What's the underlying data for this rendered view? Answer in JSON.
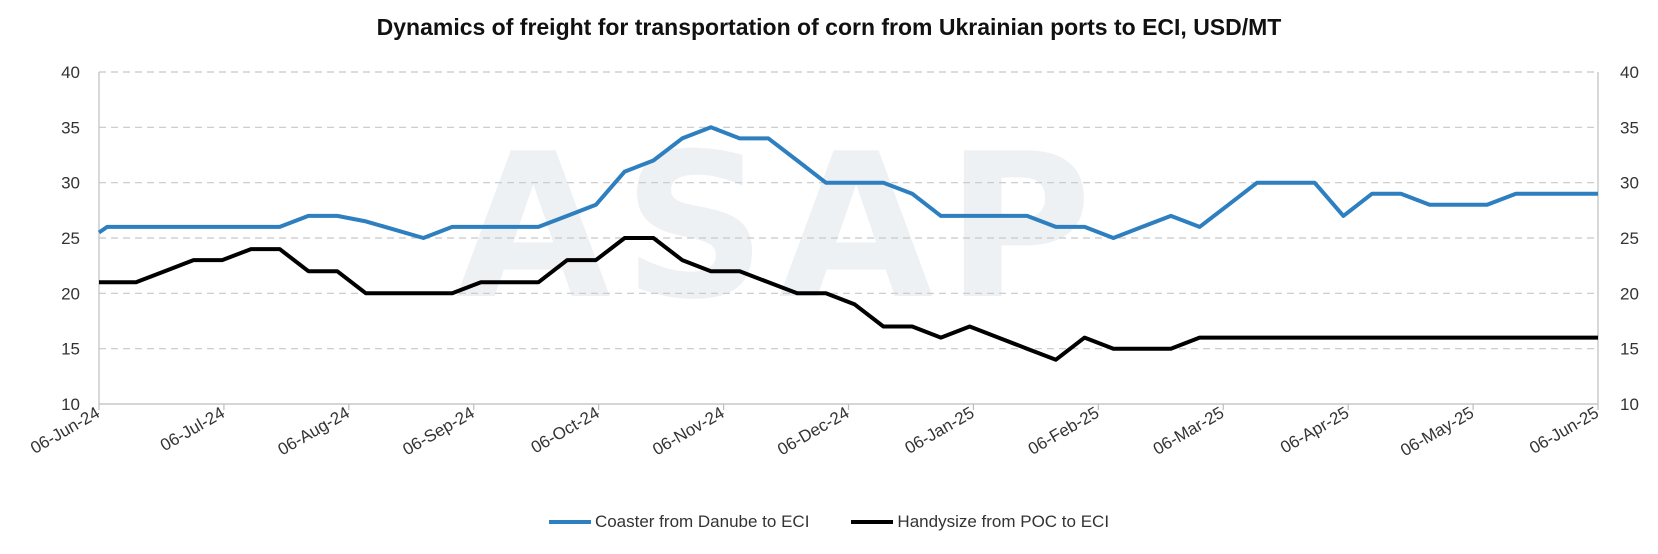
{
  "chart_data": {
    "type": "line",
    "title": "Dynamics of freight for transportation of corn from Ukrainian ports to ECI, USD/MT",
    "watermark": "ASAP",
    "xlabel": "",
    "ylabel": "",
    "ylim": [
      10,
      40
    ],
    "yticks": [
      "10",
      "15",
      "20",
      "25",
      "30",
      "35",
      "40"
    ],
    "secondary_yticks": [
      "10",
      "15",
      "20",
      "25",
      "30",
      "35",
      "40"
    ],
    "xticks": [
      "06-Jun-24",
      "06-Jul-24",
      "06-Aug-24",
      "06-Sep-24",
      "06-Oct-24",
      "06-Nov-24",
      "06-Dec-24",
      "06-Jan-25",
      "06-Feb-25",
      "06-Mar-25",
      "06-Apr-25",
      "06-May-25",
      "06-Jun-25"
    ],
    "xrange": [
      "2024-06-06",
      "2025-06-06"
    ],
    "grid": "horizontal dashed",
    "legend_position": "bottom",
    "series": [
      {
        "name": "Coaster from Danube to ECI",
        "color": "#2E7FBF",
        "points": [
          [
            "2024-06-06",
            25.5
          ],
          [
            "2024-06-08",
            26
          ],
          [
            "2024-06-15",
            26
          ],
          [
            "2024-06-22",
            26
          ],
          [
            "2024-06-29",
            26
          ],
          [
            "2024-07-06",
            26
          ],
          [
            "2024-07-13",
            26
          ],
          [
            "2024-07-20",
            26
          ],
          [
            "2024-07-27",
            27
          ],
          [
            "2024-08-03",
            27
          ],
          [
            "2024-08-10",
            26.5
          ],
          [
            "2024-08-24",
            25
          ],
          [
            "2024-08-31",
            26
          ],
          [
            "2024-09-07",
            26
          ],
          [
            "2024-09-14",
            26
          ],
          [
            "2024-09-21",
            26
          ],
          [
            "2024-09-28",
            27
          ],
          [
            "2024-10-05",
            28
          ],
          [
            "2024-10-12",
            31
          ],
          [
            "2024-10-19",
            32
          ],
          [
            "2024-10-26",
            34
          ],
          [
            "2024-11-02",
            35
          ],
          [
            "2024-11-09",
            34
          ],
          [
            "2024-11-16",
            34
          ],
          [
            "2024-11-23",
            32
          ],
          [
            "2024-11-30",
            30
          ],
          [
            "2024-12-07",
            30
          ],
          [
            "2024-12-14",
            30
          ],
          [
            "2024-12-21",
            29
          ],
          [
            "2024-12-28",
            27
          ],
          [
            "2025-01-04",
            27
          ],
          [
            "2025-01-11",
            27
          ],
          [
            "2025-01-18",
            27
          ],
          [
            "2025-01-25",
            26
          ],
          [
            "2025-02-01",
            26
          ],
          [
            "2025-02-08",
            25
          ],
          [
            "2025-02-15",
            26
          ],
          [
            "2025-02-22",
            27
          ],
          [
            "2025-03-01",
            26
          ],
          [
            "2025-03-08",
            28
          ],
          [
            "2025-03-15",
            30
          ],
          [
            "2025-03-22",
            30
          ],
          [
            "2025-03-29",
            30
          ],
          [
            "2025-04-05",
            27
          ],
          [
            "2025-04-12",
            29
          ],
          [
            "2025-04-19",
            29
          ],
          [
            "2025-04-26",
            28
          ],
          [
            "2025-05-03",
            28
          ],
          [
            "2025-05-10",
            28
          ],
          [
            "2025-05-17",
            29
          ],
          [
            "2025-05-24",
            29
          ],
          [
            "2025-05-31",
            29
          ],
          [
            "2025-06-06",
            29
          ]
        ]
      },
      {
        "name": "Handysize from POC to ECI",
        "color": "#000000",
        "points": [
          [
            "2024-06-06",
            21
          ],
          [
            "2024-06-15",
            21
          ],
          [
            "2024-06-22",
            22
          ],
          [
            "2024-06-29",
            23
          ],
          [
            "2024-07-06",
            23
          ],
          [
            "2024-07-13",
            24
          ],
          [
            "2024-07-20",
            24
          ],
          [
            "2024-07-27",
            22
          ],
          [
            "2024-08-03",
            22
          ],
          [
            "2024-08-10",
            20
          ],
          [
            "2024-08-17",
            20
          ],
          [
            "2024-08-24",
            20
          ],
          [
            "2024-08-31",
            20
          ],
          [
            "2024-09-07",
            21
          ],
          [
            "2024-09-14",
            21
          ],
          [
            "2024-09-21",
            21
          ],
          [
            "2024-09-28",
            23
          ],
          [
            "2024-10-05",
            23
          ],
          [
            "2024-10-12",
            25
          ],
          [
            "2024-10-19",
            25
          ],
          [
            "2024-10-26",
            23
          ],
          [
            "2024-11-02",
            22
          ],
          [
            "2024-11-09",
            22
          ],
          [
            "2024-11-16",
            21
          ],
          [
            "2024-11-23",
            20
          ],
          [
            "2024-11-30",
            20
          ],
          [
            "2024-12-07",
            19
          ],
          [
            "2024-12-14",
            17
          ],
          [
            "2024-12-21",
            17
          ],
          [
            "2024-12-28",
            16
          ],
          [
            "2025-01-04",
            17
          ],
          [
            "2025-01-11",
            16
          ],
          [
            "2025-01-18",
            15
          ],
          [
            "2025-01-25",
            14
          ],
          [
            "2025-02-01",
            16
          ],
          [
            "2025-02-08",
            15
          ],
          [
            "2025-02-15",
            15
          ],
          [
            "2025-02-22",
            15
          ],
          [
            "2025-03-01",
            16
          ],
          [
            "2025-03-08",
            16
          ],
          [
            "2025-03-15",
            16
          ],
          [
            "2025-04-05",
            16
          ],
          [
            "2025-05-03",
            16
          ],
          [
            "2025-06-06",
            16
          ]
        ]
      }
    ]
  }
}
